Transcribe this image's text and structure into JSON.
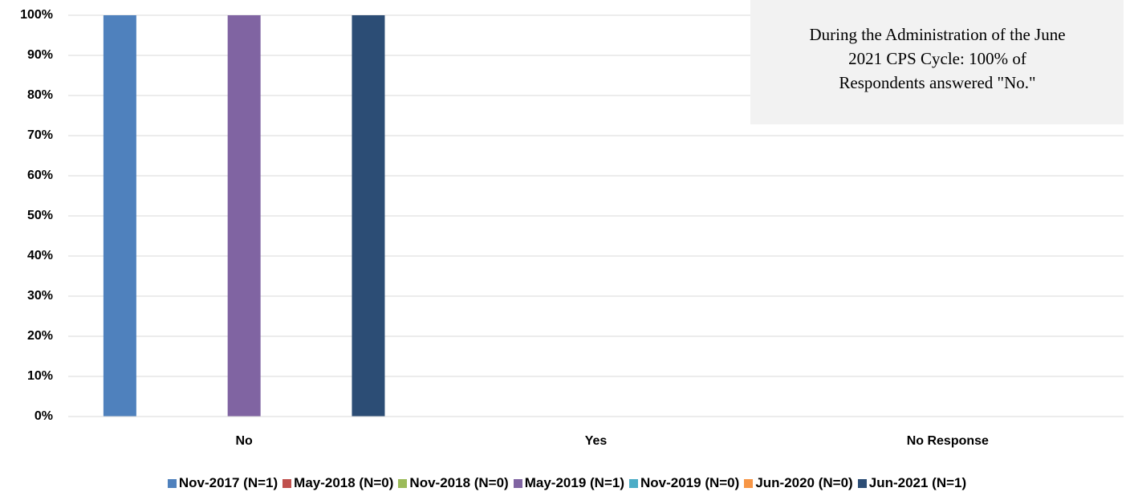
{
  "chart_data": {
    "type": "bar",
    "categories": [
      "No",
      "Yes",
      "No Response"
    ],
    "series": [
      {
        "name": "Nov-2017 (N=1)",
        "color": "#4f81bd",
        "values": [
          100,
          0,
          0
        ]
      },
      {
        "name": "May-2018 (N=0)",
        "color": "#c0504d",
        "values": [
          0,
          0,
          0
        ]
      },
      {
        "name": "Nov-2018 (N=0)",
        "color": "#9bbb59",
        "values": [
          0,
          0,
          0
        ]
      },
      {
        "name": "May-2019 (N=1)",
        "color": "#8064a2",
        "values": [
          100,
          0,
          0
        ]
      },
      {
        "name": "Nov-2019 (N=0)",
        "color": "#4bacc6",
        "values": [
          0,
          0,
          0
        ]
      },
      {
        "name": "Jun-2020 (N=0)",
        "color": "#f79646",
        "values": [
          0,
          0,
          0
        ]
      },
      {
        "name": "Jun-2021 (N=1)",
        "color": "#2c4d75",
        "values": [
          100,
          0,
          0
        ]
      }
    ],
    "ylim": [
      0,
      100
    ],
    "yticks": [
      {
        "value": 0,
        "label": "0%"
      },
      {
        "value": 10,
        "label": "10%"
      },
      {
        "value": 20,
        "label": "20%"
      },
      {
        "value": 30,
        "label": "30%"
      },
      {
        "value": 40,
        "label": "40%"
      },
      {
        "value": 50,
        "label": "50%"
      },
      {
        "value": 60,
        "label": "60%"
      },
      {
        "value": 70,
        "label": "70%"
      },
      {
        "value": 80,
        "label": "80%"
      },
      {
        "value": 90,
        "label": "90%"
      },
      {
        "value": 100,
        "label": "100%"
      }
    ],
    "grid": true,
    "legend": "bottom",
    "annotation": [
      "During the Administration of the June",
      "2021 CPS Cycle: 100% of",
      "Respondents answered \"No.\""
    ]
  }
}
